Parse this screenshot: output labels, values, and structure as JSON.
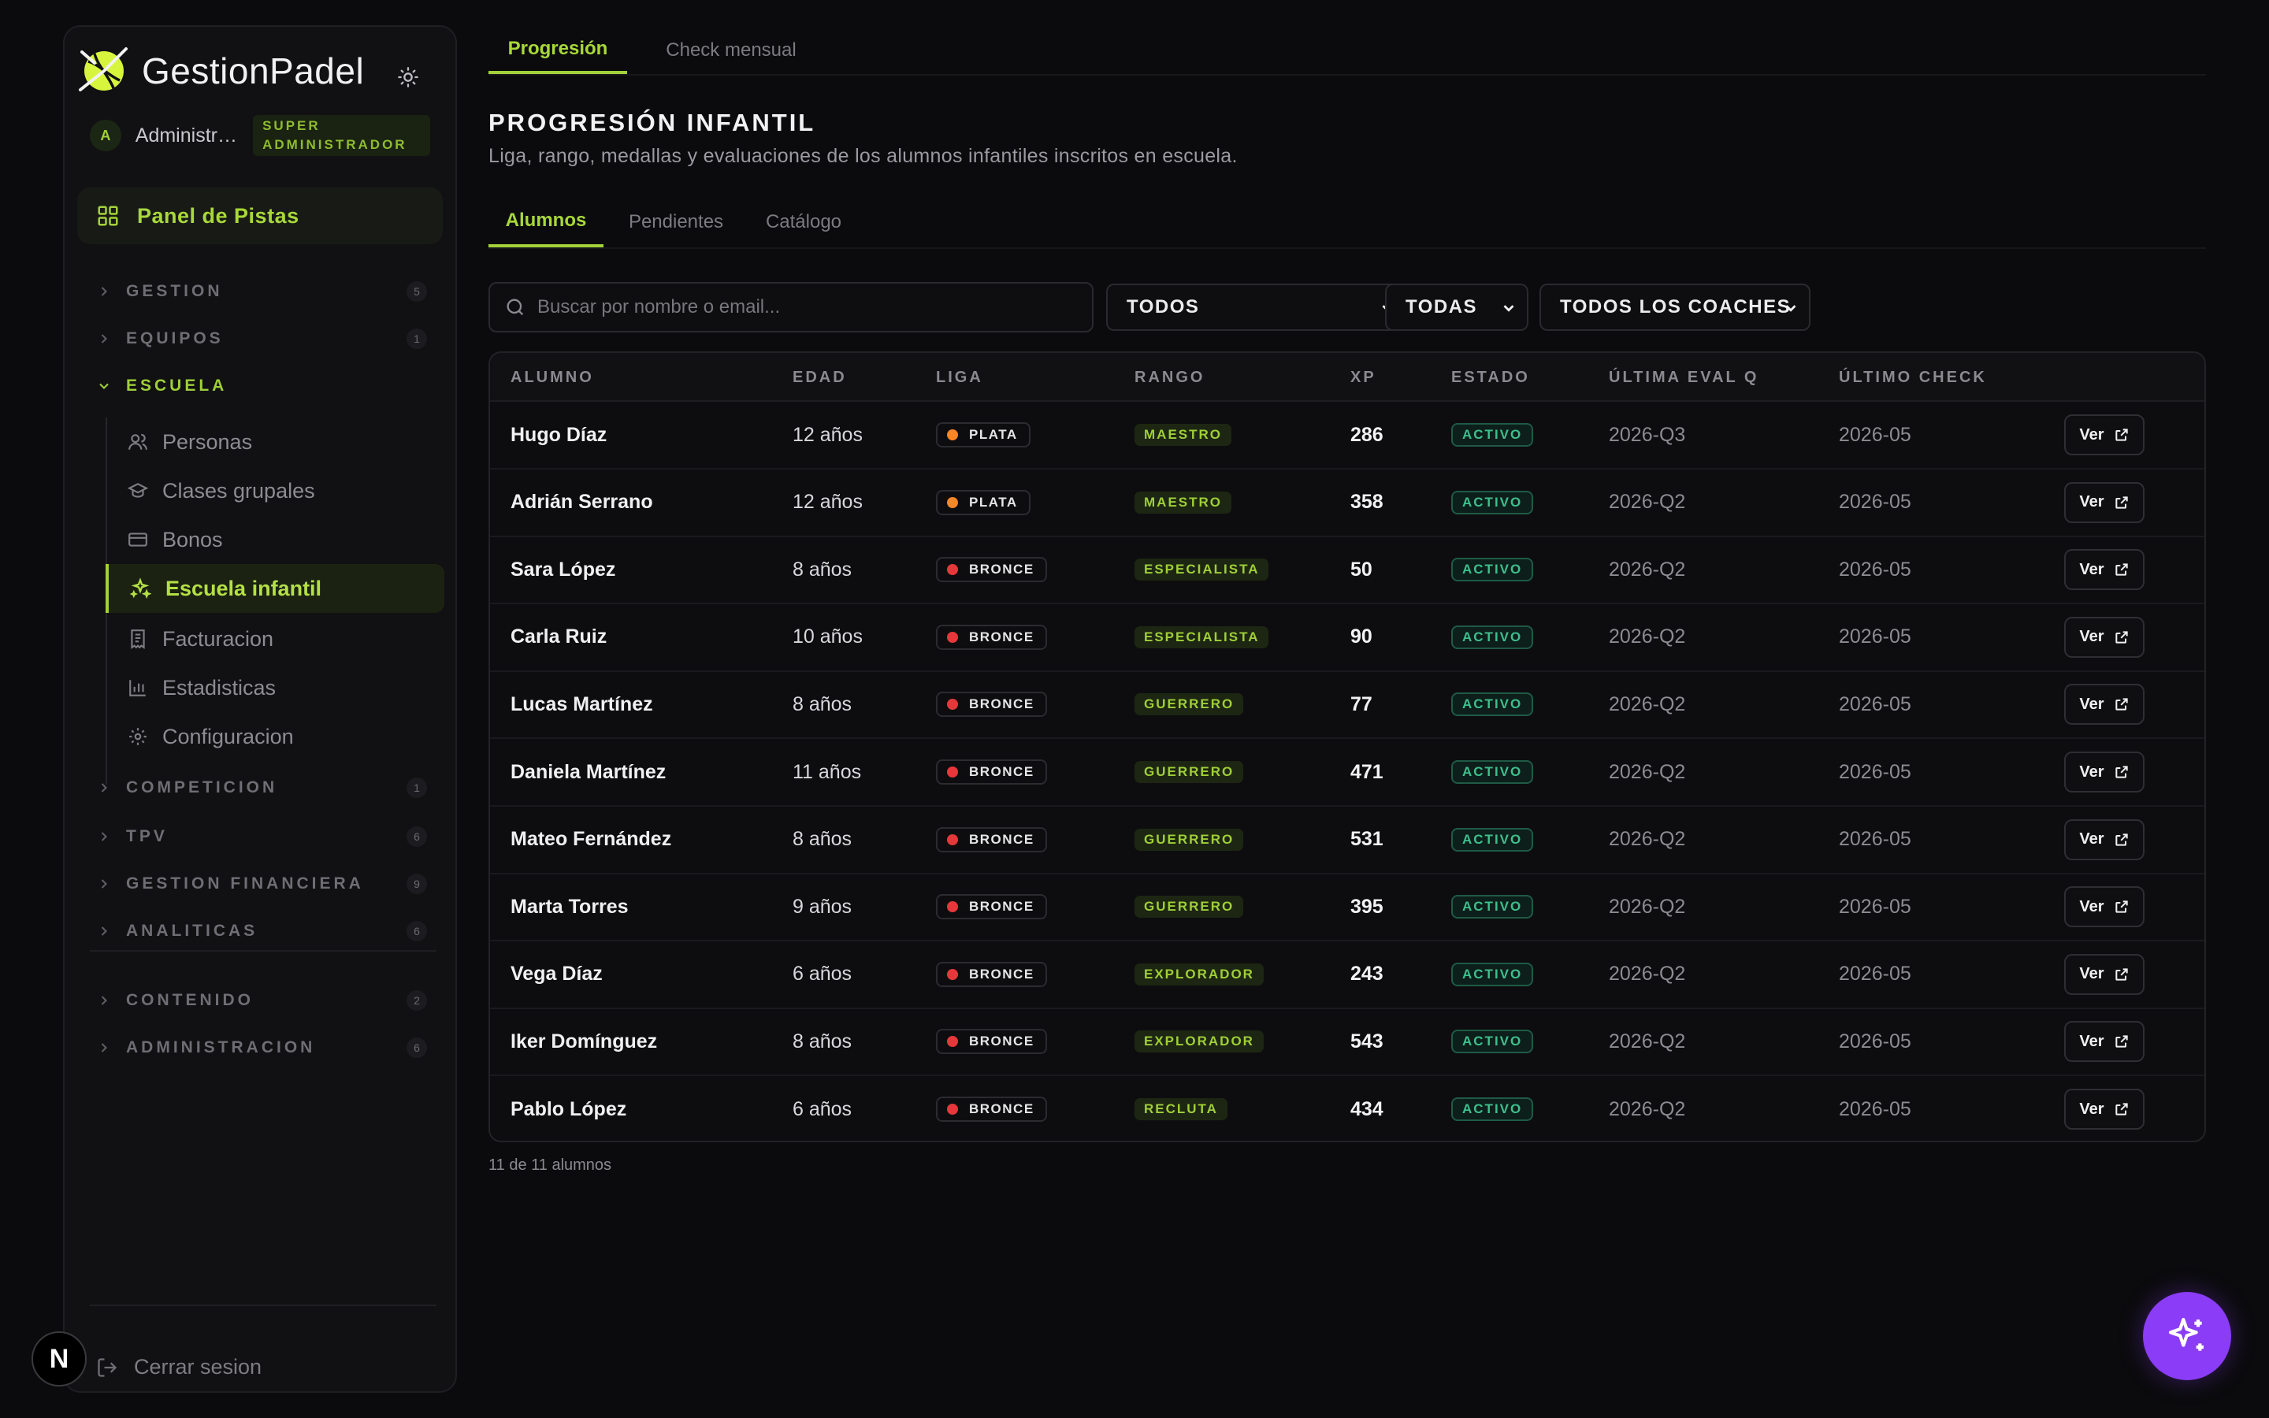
{
  "app": {
    "name": "GestionPadel"
  },
  "user": {
    "initial": "A",
    "name": "Administrador",
    "role": "SUPER ADMINISTRADOR"
  },
  "sidebar": {
    "main_item": "Panel de Pistas",
    "groups_top": [
      {
        "label": "GESTION",
        "count": "5"
      },
      {
        "label": "EQUIPOS",
        "count": "1"
      }
    ],
    "open_group": {
      "label": "ESCUELA"
    },
    "escuela_items": [
      {
        "label": "Personas",
        "icon": "users-icon"
      },
      {
        "label": "Clases grupales",
        "icon": "graduation-cap-icon"
      },
      {
        "label": "Bonos",
        "icon": "credit-card-icon"
      },
      {
        "label": "Escuela infantil",
        "icon": "sparkles-icon",
        "active": true
      },
      {
        "label": "Facturacion",
        "icon": "receipt-icon"
      },
      {
        "label": "Estadisticas",
        "icon": "bar-chart-icon"
      },
      {
        "label": "Configuracion",
        "icon": "gear-icon"
      }
    ],
    "groups_bottom": [
      {
        "label": "COMPETICION",
        "count": "1"
      },
      {
        "label": "TPV",
        "count": "6"
      },
      {
        "label": "GESTION FINANCIERA",
        "count": "9"
      },
      {
        "label": "ANALITICAS",
        "count": "6"
      }
    ],
    "groups_extra": [
      {
        "label": "CONTENIDO",
        "count": "2"
      },
      {
        "label": "ADMINISTRACION",
        "count": "6"
      }
    ],
    "logout": "Cerrar sesion"
  },
  "top_tabs": [
    "Progresión",
    "Check mensual"
  ],
  "page": {
    "title": "PROGRESIÓN INFANTIL",
    "subtitle": "Liga, rango, medallas y evaluaciones de los alumnos infantiles inscritos en escuela."
  },
  "sub_tabs": [
    "Alumnos",
    "Pendientes",
    "Catálogo"
  ],
  "filters": {
    "search_placeholder": "Buscar por nombre o email...",
    "select1": "TODOS",
    "select2": "TODAS",
    "select3": "TODOS LOS COACHES"
  },
  "table": {
    "headers": [
      "ALUMNO",
      "EDAD",
      "LIGA",
      "RANGO",
      "XP",
      "ESTADO",
      "ÚLTIMA EVAL Q",
      "ÚLTIMO CHECK"
    ],
    "action_label": "Ver",
    "rows": [
      {
        "name": "Hugo Díaz",
        "age": "12 años",
        "league": "PLATA",
        "rank": "MAESTRO",
        "xp": "286",
        "state": "ACTIVO",
        "eval": "2026-Q3",
        "check": "2026-05"
      },
      {
        "name": "Adrián Serrano",
        "age": "12 años",
        "league": "PLATA",
        "rank": "MAESTRO",
        "xp": "358",
        "state": "ACTIVO",
        "eval": "2026-Q2",
        "check": "2026-05"
      },
      {
        "name": "Sara López",
        "age": "8 años",
        "league": "BRONCE",
        "rank": "ESPECIALISTA",
        "xp": "50",
        "state": "ACTIVO",
        "eval": "2026-Q2",
        "check": "2026-05"
      },
      {
        "name": "Carla Ruiz",
        "age": "10 años",
        "league": "BRONCE",
        "rank": "ESPECIALISTA",
        "xp": "90",
        "state": "ACTIVO",
        "eval": "2026-Q2",
        "check": "2026-05"
      },
      {
        "name": "Lucas Martínez",
        "age": "8 años",
        "league": "BRONCE",
        "rank": "GUERRERO",
        "xp": "77",
        "state": "ACTIVO",
        "eval": "2026-Q2",
        "check": "2026-05"
      },
      {
        "name": "Daniela Martínez",
        "age": "11 años",
        "league": "BRONCE",
        "rank": "GUERRERO",
        "xp": "471",
        "state": "ACTIVO",
        "eval": "2026-Q2",
        "check": "2026-05"
      },
      {
        "name": "Mateo Fernández",
        "age": "8 años",
        "league": "BRONCE",
        "rank": "GUERRERO",
        "xp": "531",
        "state": "ACTIVO",
        "eval": "2026-Q2",
        "check": "2026-05"
      },
      {
        "name": "Marta Torres",
        "age": "9 años",
        "league": "BRONCE",
        "rank": "GUERRERO",
        "xp": "395",
        "state": "ACTIVO",
        "eval": "2026-Q2",
        "check": "2026-05"
      },
      {
        "name": "Vega Díaz",
        "age": "6 años",
        "league": "BRONCE",
        "rank": "EXPLORADOR",
        "xp": "243",
        "state": "ACTIVO",
        "eval": "2026-Q2",
        "check": "2026-05"
      },
      {
        "name": "Iker Domínguez",
        "age": "8 años",
        "league": "BRONCE",
        "rank": "EXPLORADOR",
        "xp": "543",
        "state": "ACTIVO",
        "eval": "2026-Q2",
        "check": "2026-05"
      },
      {
        "name": "Pablo López",
        "age": "6 años",
        "league": "BRONCE",
        "rank": "RECLUTA",
        "xp": "434",
        "state": "ACTIVO",
        "eval": "2026-Q2",
        "check": "2026-05"
      }
    ],
    "footer": "11 de 11 alumnos"
  },
  "colors": {
    "accent": "#a3d13a",
    "plata": "#f5862a",
    "bronce": "#e5383b",
    "activo": "#3fbf8e",
    "fab": "#8b3cf6"
  },
  "icons": {
    "logo": "padel-ball-logo",
    "theme": "sun-icon",
    "dashboard": "grid-icon",
    "search": "search-icon",
    "external": "external-link-icon",
    "fab": "sparkles-icon",
    "logout": "logout-icon"
  }
}
